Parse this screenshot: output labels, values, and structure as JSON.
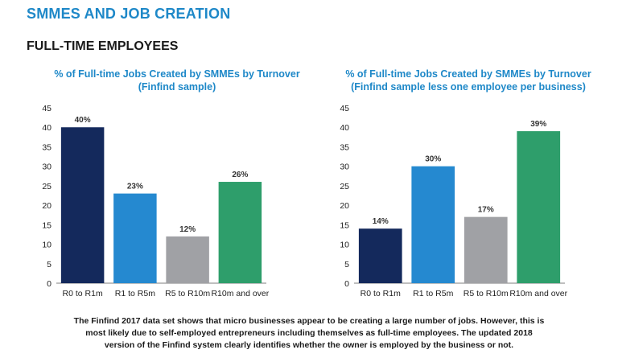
{
  "page": {
    "section_title": "SMMES AND JOB CREATION",
    "subtitle": "FULL-TIME EMPLOYEES",
    "footnote_lines": [
      "The Finfind 2017 data set shows that micro businesses appear to be creating a large number of jobs. However, this is",
      "most likely due to self-employed entrepreneurs including themselves as full-time employees. The updated 2018",
      "version of the Finfind system clearly identifies whether the owner is employed by the business or not."
    ]
  },
  "chart_data": [
    {
      "type": "bar",
      "title_lines": [
        "% of Full-time Jobs Created by SMMEs by Turnover",
        "(Finfind sample)"
      ],
      "categories": [
        "R0 to R1m",
        "R1 to R5m",
        "R5 to R10m",
        "R10m and over"
      ],
      "values": [
        40,
        23,
        12,
        26
      ],
      "data_labels": [
        "40%",
        "23%",
        "12%",
        "26%"
      ],
      "colors": [
        "#14295c",
        "#2589d0",
        "#a0a1a5",
        "#2e9e6b"
      ],
      "ylim": [
        0,
        45
      ],
      "yticks": [
        0,
        5,
        10,
        15,
        20,
        25,
        30,
        35,
        40,
        45
      ],
      "grid": false
    },
    {
      "type": "bar",
      "title_lines": [
        "% of Full-time Jobs Created by SMMEs by Turnover",
        "(Finfind sample less one employee per business)"
      ],
      "categories": [
        "R0 to R1m",
        "R1 to R5m",
        "R5 to R10m",
        "R10m and over"
      ],
      "values": [
        14,
        30,
        17,
        39
      ],
      "data_labels": [
        "14%",
        "30%",
        "17%",
        "39%"
      ],
      "colors": [
        "#14295c",
        "#2589d0",
        "#a0a1a5",
        "#2e9e6b"
      ],
      "ylim": [
        0,
        45
      ],
      "yticks": [
        0,
        5,
        10,
        15,
        20,
        25,
        30,
        35,
        40,
        45
      ],
      "grid": false
    }
  ]
}
